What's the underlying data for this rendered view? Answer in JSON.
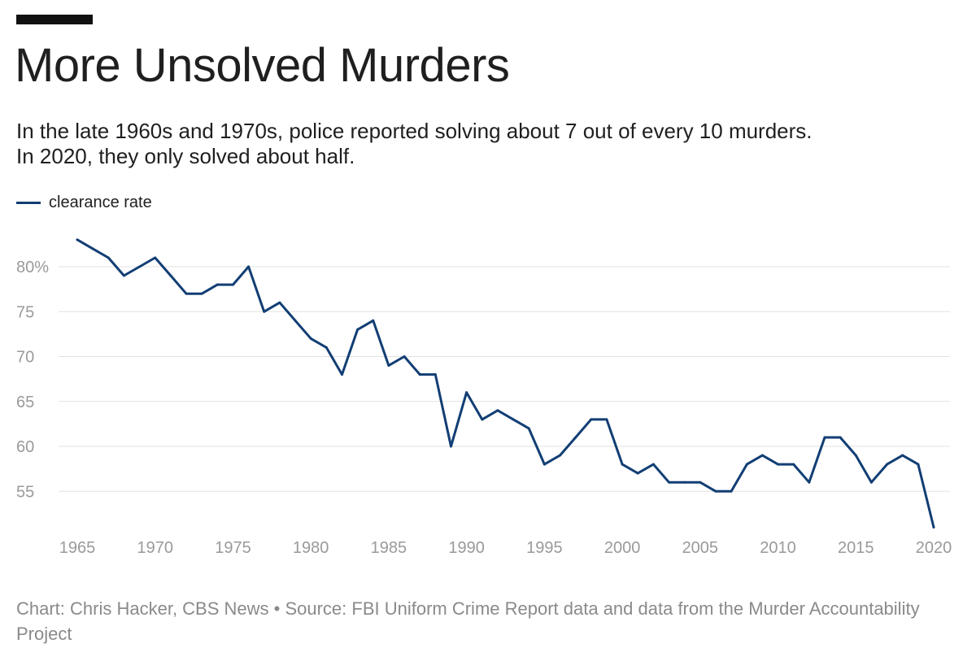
{
  "header": {
    "title": "More Unsolved Murders",
    "subtitle_line1": "In the late 1960s and 1970s, police reported solving about 7 out of every 10 murders.",
    "subtitle_line2": "In 2020, they only solved about half."
  },
  "legend": {
    "label": "clearance rate"
  },
  "colors": {
    "line": "#123e74",
    "grid": "#e2e2e2",
    "axis_text": "#9a9a9a"
  },
  "footer": {
    "credit": "Chart: Chris Hacker, CBS News • Source: FBI Uniform Crime Report data and data from the Murder Accountability Project"
  },
  "chart_data": {
    "type": "line",
    "title": "More Unsolved Murders",
    "xlabel": "",
    "ylabel": "",
    "series": [
      {
        "name": "clearance rate",
        "x": [
          1965,
          1966,
          1967,
          1968,
          1969,
          1970,
          1971,
          1972,
          1973,
          1974,
          1975,
          1976,
          1977,
          1978,
          1979,
          1980,
          1981,
          1982,
          1983,
          1984,
          1985,
          1986,
          1987,
          1988,
          1989,
          1990,
          1991,
          1992,
          1993,
          1994,
          1995,
          1996,
          1997,
          1998,
          1999,
          2000,
          2001,
          2002,
          2003,
          2004,
          2005,
          2006,
          2007,
          2008,
          2009,
          2010,
          2011,
          2012,
          2013,
          2014,
          2015,
          2016,
          2017,
          2018,
          2019,
          2020
        ],
        "values": [
          83,
          82,
          81,
          79,
          80,
          81,
          79,
          77,
          77,
          78,
          78,
          80,
          75,
          76,
          74,
          72,
          71,
          68,
          73,
          74,
          69,
          70,
          68,
          68,
          60,
          66,
          63,
          64,
          63,
          62,
          58,
          59,
          61,
          63,
          63,
          58,
          57,
          58,
          56,
          56,
          56,
          55,
          55,
          58,
          59,
          58,
          58,
          56,
          61,
          61,
          59,
          56,
          58,
          59,
          58,
          51
        ]
      }
    ],
    "xlim": [
      1965,
      2020
    ],
    "ylim": [
      51,
      83
    ],
    "x_ticks": [
      1965,
      1970,
      1975,
      1980,
      1985,
      1990,
      1995,
      2000,
      2005,
      2010,
      2015,
      2020
    ],
    "x_tick_labels": [
      "1965",
      "1970",
      "1975",
      "1980",
      "1985",
      "1990",
      "1995",
      "2000",
      "2005",
      "2010",
      "2015",
      "2020"
    ],
    "y_ticks": [
      55,
      60,
      65,
      70,
      75,
      80
    ],
    "y_tick_labels": [
      "55",
      "60",
      "65",
      "70",
      "75",
      "80%"
    ],
    "grid": true,
    "legend_position": "top-left"
  }
}
